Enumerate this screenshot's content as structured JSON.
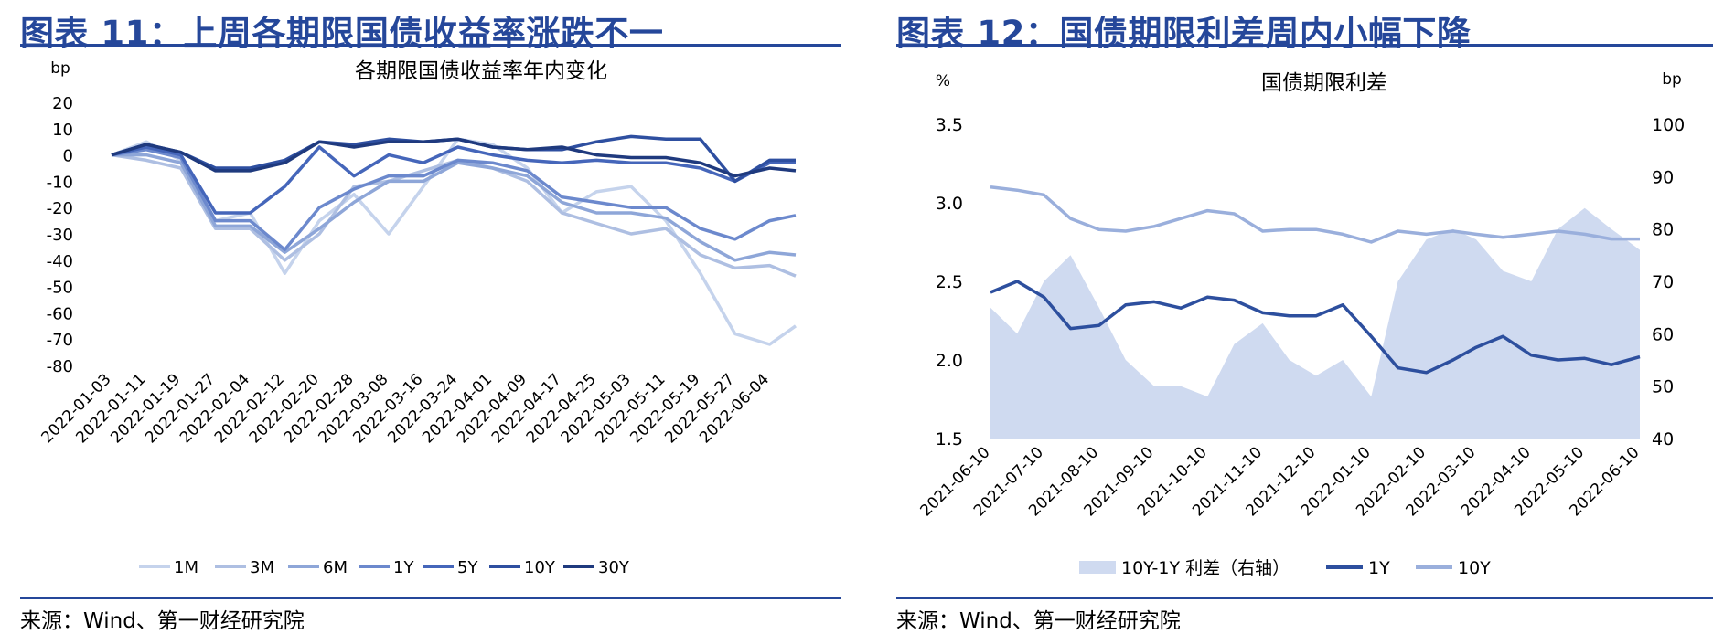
{
  "left": {
    "fig_title": "图表 11：上周各期限国债收益率涨跌不一",
    "source": "来源：Wind、第一财经研究院"
  },
  "right": {
    "fig_title": "图表 12：国债期限利差周内小幅下降",
    "source": "来源：Wind、第一财经研究院"
  },
  "chart_data": [
    {
      "type": "line",
      "title": "各期限国债收益率年内变化",
      "ylabel": "bp",
      "xlabel": "",
      "ylim": [
        -80,
        20
      ],
      "yticks": [
        20,
        10,
        0,
        -10,
        -20,
        -30,
        -40,
        -50,
        -60,
        -70,
        -80
      ],
      "x_tick_labels": [
        "2022-01-03",
        "2022-01-11",
        "2022-01-19",
        "2022-01-27",
        "2022-02-04",
        "2022-02-12",
        "2022-02-20",
        "2022-02-28",
        "2022-03-08",
        "2022-03-16",
        "2022-03-24",
        "2022-04-01",
        "2022-04-09",
        "2022-04-17",
        "2022-04-25",
        "2022-05-03",
        "2022-05-11",
        "2022-05-19",
        "2022-05-27",
        "2022-06-04"
      ],
      "x": [
        "2022-01-03",
        "2022-01-11",
        "2022-01-19",
        "2022-01-27",
        "2022-02-04",
        "2022-02-12",
        "2022-02-20",
        "2022-02-28",
        "2022-03-08",
        "2022-03-16",
        "2022-03-24",
        "2022-04-01",
        "2022-04-09",
        "2022-04-17",
        "2022-04-25",
        "2022-05-03",
        "2022-05-11",
        "2022-05-19",
        "2022-05-27",
        "2022-06-04",
        "2022-06-10"
      ],
      "legend_position": "bottom",
      "grid": false,
      "series": [
        {
          "name": "1M",
          "color": "#c5d3ec",
          "values": [
            0,
            5,
            -2,
            -25,
            -22,
            -45,
            -25,
            -15,
            -30,
            -12,
            6,
            4,
            -5,
            -22,
            -14,
            -12,
            -25,
            -45,
            -68,
            -72,
            -65
          ]
        },
        {
          "name": "3M",
          "color": "#aebfe2",
          "values": [
            0,
            -2,
            -5,
            -28,
            -28,
            -40,
            -30,
            -12,
            -10,
            -6,
            -2,
            -5,
            -10,
            -22,
            -26,
            -30,
            -28,
            -38,
            -43,
            -42,
            -46
          ]
        },
        {
          "name": "6M",
          "color": "#8ea6d8",
          "values": [
            0,
            0,
            -3,
            -27,
            -27,
            -37,
            -28,
            -18,
            -10,
            -10,
            -3,
            -5,
            -8,
            -18,
            -22,
            -22,
            -24,
            -33,
            -40,
            -37,
            -38
          ]
        },
        {
          "name": "1Y",
          "color": "#6c89cd",
          "values": [
            0,
            2,
            -1,
            -25,
            -25,
            -36,
            -20,
            -13,
            -8,
            -8,
            -2,
            -3,
            -6,
            -16,
            -18,
            -20,
            -20,
            -28,
            -32,
            -25,
            -23
          ]
        },
        {
          "name": "5Y",
          "color": "#4566ba",
          "values": [
            0,
            3,
            0,
            -22,
            -22,
            -12,
            3,
            -8,
            0,
            -3,
            3,
            0,
            -2,
            -3,
            -2,
            -3,
            -3,
            -5,
            -10,
            -3,
            -3
          ]
        },
        {
          "name": "10Y",
          "color": "#2e4fa0",
          "values": [
            0,
            4,
            1,
            -5,
            -5,
            -2,
            5,
            4,
            6,
            5,
            6,
            3,
            2,
            2,
            5,
            7,
            6,
            6,
            -10,
            -2,
            -2
          ]
        },
        {
          "name": "30Y",
          "color": "#1f3a7e",
          "values": [
            0,
            4,
            1,
            -6,
            -6,
            -3,
            5,
            3,
            5,
            5,
            6,
            3,
            2,
            3,
            0,
            -1,
            -1,
            -3,
            -8,
            -5,
            -6
          ]
        }
      ]
    },
    {
      "type": "area+line",
      "title": "国债期限利差",
      "ylabel_left": "%",
      "ylabel_right": "bp",
      "ylim_left": [
        1.5,
        3.5
      ],
      "yticks_left": [
        "3.5",
        "3.0",
        "2.5",
        "2.0",
        "1.5"
      ],
      "ylim_right": [
        40,
        100
      ],
      "yticks_right": [
        "100",
        "90",
        "80",
        "70",
        "60",
        "50",
        "40"
      ],
      "x_tick_labels": [
        "2021-06-10",
        "2021-07-10",
        "2021-08-10",
        "2021-09-10",
        "2021-10-10",
        "2021-11-10",
        "2021-12-10",
        "2022-01-10",
        "2022-02-10",
        "2022-03-10",
        "2022-04-10",
        "2022-05-10",
        "2022-06-10"
      ],
      "x": [
        "2021-06-10",
        "2021-06-25",
        "2021-07-10",
        "2021-07-25",
        "2021-08-10",
        "2021-08-25",
        "2021-09-10",
        "2021-09-25",
        "2021-10-10",
        "2021-10-25",
        "2021-11-10",
        "2021-11-25",
        "2021-12-10",
        "2021-12-25",
        "2022-01-10",
        "2022-01-25",
        "2022-02-10",
        "2022-02-25",
        "2022-03-10",
        "2022-03-25",
        "2022-04-10",
        "2022-04-25",
        "2022-05-10",
        "2022-05-25",
        "2022-06-10"
      ],
      "legend_position": "bottom",
      "grid": false,
      "series": [
        {
          "name": "10Y-1Y 利差（右轴）",
          "axis": "right",
          "kind": "area",
          "color": "#cfdaf0",
          "values": [
            65,
            60,
            70,
            75,
            65,
            55,
            50,
            50,
            48,
            58,
            62,
            55,
            52,
            55,
            48,
            70,
            78,
            80,
            78,
            72,
            70,
            80,
            84,
            80,
            76
          ]
        },
        {
          "name": "1Y",
          "axis": "left",
          "kind": "line",
          "color": "#2d4f9e",
          "values": [
            2.43,
            2.5,
            2.4,
            2.2,
            2.22,
            2.35,
            2.37,
            2.33,
            2.4,
            2.38,
            2.3,
            2.28,
            2.28,
            2.35,
            2.15,
            1.95,
            1.92,
            2.0,
            2.08,
            2.15,
            2.03,
            2.0,
            2.01,
            1.97,
            2.02
          ]
        },
        {
          "name": "10Y",
          "axis": "left",
          "kind": "line",
          "color": "#9aafdc",
          "values": [
            3.1,
            3.08,
            3.05,
            2.9,
            2.83,
            2.82,
            2.85,
            2.9,
            2.95,
            2.93,
            2.82,
            2.83,
            2.83,
            2.8,
            2.75,
            2.82,
            2.8,
            2.82,
            2.8,
            2.78,
            2.8,
            2.82,
            2.8,
            2.77,
            2.77
          ]
        }
      ]
    }
  ]
}
